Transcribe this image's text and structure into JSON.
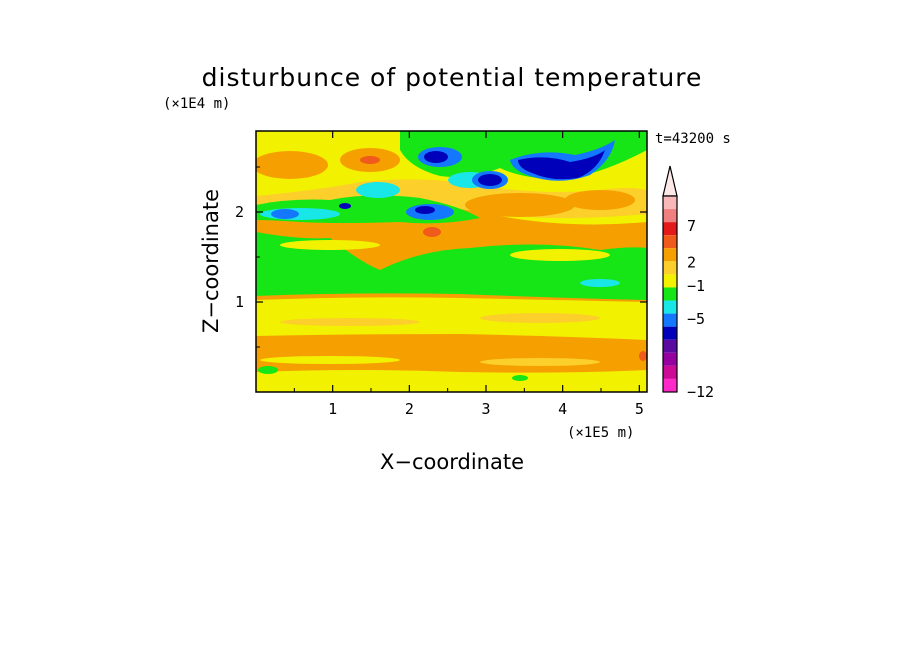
{
  "chart_data": {
    "type": "heatmap",
    "title": "disturbunce of potential temperature",
    "time_label": "t=43200 s",
    "xlabel": "X−coordinate",
    "ylabel": "Z−coordinate",
    "x_multiplier": "(×1E5 m)",
    "y_multiplier": "(×1E4 m)",
    "xlim": [
      0,
      5.1
    ],
    "ylim": [
      0,
      2.9
    ],
    "x_ticks": [
      1,
      2,
      3,
      4,
      5
    ],
    "y_ticks": [
      1,
      2
    ],
    "x_tick_labels": [
      "1",
      "2",
      "3",
      "4",
      "5"
    ],
    "y_tick_labels": [
      "1",
      "2"
    ],
    "colorbar": {
      "labels": [
        {
          "value": 7,
          "text": "7"
        },
        {
          "value": 2,
          "text": "2"
        },
        {
          "value": -1,
          "text": "−1"
        },
        {
          "value": -5,
          "text": "−5"
        },
        {
          "value": -12,
          "text": "−12"
        }
      ],
      "bins": [
        {
          "color": "#f8b8b8"
        },
        {
          "color": "#f08080"
        },
        {
          "color": "#e41a1a"
        },
        {
          "color": "#f05a1a"
        },
        {
          "color": "#f5a000"
        },
        {
          "color": "#fccf2a"
        },
        {
          "color": "#f2f200"
        },
        {
          "color": "#16e616"
        },
        {
          "color": "#19e6e6"
        },
        {
          "color": "#1478ff"
        },
        {
          "color": "#0000bb"
        },
        {
          "color": "#5a0aa0"
        },
        {
          "color": "#9600a0"
        },
        {
          "color": "#cc0a96"
        },
        {
          "color": "#ff28c8"
        }
      ],
      "extend_top_color": "#fde8e8"
    },
    "palette": {
      "orange": "#f5a000",
      "light_orange": "#fccf2a",
      "yellow": "#f2f200",
      "green": "#16e616",
      "cyan": "#19e6e6",
      "blue": "#1478ff",
      "dark_blue": "#0000bb",
      "red_orange": "#f05a1a"
    }
  }
}
